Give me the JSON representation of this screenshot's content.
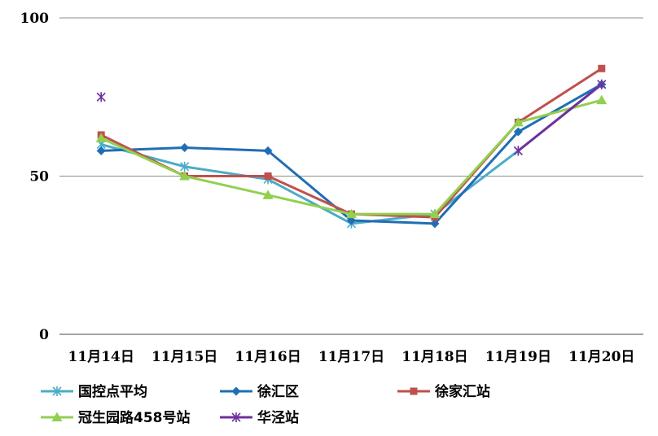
{
  "chart_data": {
    "type": "line",
    "title": "",
    "xlabel": "",
    "ylabel": "",
    "categories": [
      "11月14日",
      "11月15日",
      "11月16日",
      "11月17日",
      "11月18日",
      "11月19日",
      "11月20日"
    ],
    "ylim": [
      0,
      100
    ],
    "yticks": [
      0,
      50,
      100
    ],
    "grid": true,
    "legend_position": "bottom",
    "series": [
      {
        "name": "国控点平均",
        "color": "#4BACC6",
        "marker": "asterisk",
        "values": [
          60,
          53,
          49,
          35,
          38,
          58,
          79
        ]
      },
      {
        "name": "徐汇区",
        "color": "#1F6EB5",
        "marker": "diamond",
        "values": [
          58,
          59,
          58,
          36,
          35,
          64,
          79
        ]
      },
      {
        "name": "徐家汇站",
        "color": "#C0504D",
        "marker": "square",
        "values": [
          63,
          50,
          50,
          38,
          37,
          67,
          84
        ]
      },
      {
        "name": "冠生园路458号站",
        "color": "#92D050",
        "marker": "triangle",
        "values": [
          62,
          50,
          44,
          38,
          38,
          67,
          74
        ]
      },
      {
        "name": "华泾站",
        "color": "#7030A0",
        "marker": "asterisk",
        "values": [
          75,
          null,
          null,
          null,
          null,
          58,
          79
        ]
      }
    ]
  }
}
